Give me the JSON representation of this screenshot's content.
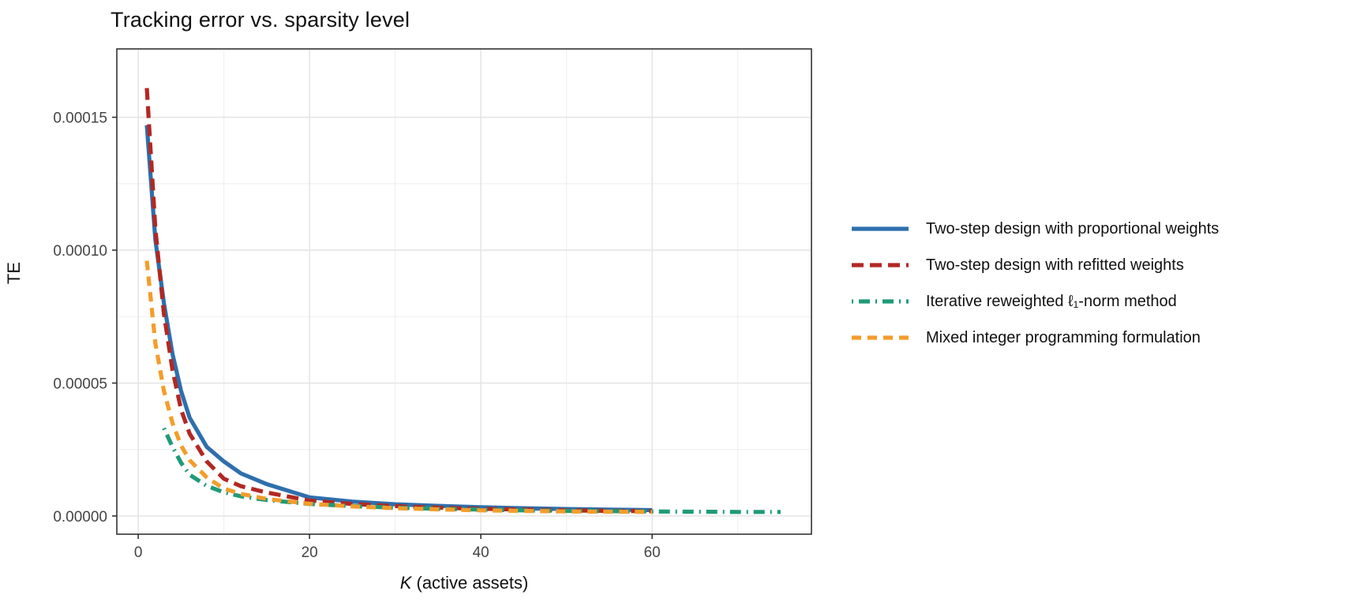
{
  "chart_data": {
    "type": "line",
    "title": "Tracking error vs. sparsity level",
    "xlabel_var": "K",
    "xlabel_rest": " (active assets)",
    "ylabel": "TE",
    "xlim": [
      -2.5,
      78.6
    ],
    "ylim": [
      -6.86e-06,
      0.00017571
    ],
    "x_ticks": [
      0,
      20,
      40,
      60
    ],
    "x_tick_labels": [
      "0",
      "20",
      "40",
      "60"
    ],
    "x_minor_ticks": [
      10,
      30,
      50,
      70
    ],
    "y_ticks": [
      0.0,
      5e-05,
      0.0001,
      0.00015
    ],
    "y_tick_labels": [
      "0.00000",
      "0.00005",
      "0.00010",
      "0.00015"
    ],
    "y_minor_ticks": [
      2.5e-05,
      7.5e-05,
      0.000125
    ],
    "grid": true,
    "legend_position": "right",
    "colors": {
      "panel_border": "#333333",
      "grid_major": "#e4e4e4",
      "grid_minor": "#efefef",
      "tick_text": "#444444"
    },
    "series": [
      {
        "name": "Two-step design with proportional weights",
        "color": "#2e6fad",
        "dash": "",
        "x": [
          1,
          2,
          3,
          4,
          5,
          6,
          8,
          10,
          12,
          15,
          20,
          25,
          30,
          35,
          40,
          45,
          50,
          55,
          60
        ],
        "y": [
          0.000147,
          0.000104,
          8e-05,
          6.1e-05,
          4.7e-05,
          3.7e-05,
          2.6e-05,
          2.05e-05,
          1.6e-05,
          1.2e-05,
          7e-06,
          5.4e-06,
          4.4e-06,
          3.8e-06,
          3.3e-06,
          2.9e-06,
          2.6e-06,
          2.4e-06,
          2.2e-06
        ]
      },
      {
        "name": "Two-step design with refitted weights",
        "color": "#b22823",
        "dash": "15 8",
        "x": [
          1,
          2,
          3,
          4,
          5,
          6,
          8,
          10,
          12,
          15,
          20,
          25,
          30,
          35,
          40,
          45,
          50,
          55,
          60
        ],
        "y": [
          0.000161,
          0.000108,
          7.6e-05,
          5.5e-05,
          4e-05,
          3.1e-05,
          2.05e-05,
          1.4e-05,
          1.12e-05,
          8.8e-06,
          5.8e-06,
          4.5e-06,
          3.7e-06,
          3.1e-06,
          2.7e-06,
          2.4e-06,
          2.1e-06,
          1.9e-06,
          1.8e-06
        ]
      },
      {
        "name": "Iterative reweighted ℓ₁-norm method",
        "color": "#1f9a78",
        "dash": "2 7 14 7",
        "x": [
          3,
          4,
          5,
          6,
          8,
          10,
          12,
          15,
          20,
          25,
          30,
          35,
          40,
          45,
          50,
          55,
          60,
          65,
          70,
          75
        ],
        "y": [
          3.3e-05,
          2.6e-05,
          2e-05,
          1.55e-05,
          1.13e-05,
          8.9e-06,
          7.4e-06,
          6e-06,
          4.5e-06,
          3.7e-06,
          3.1e-06,
          2.7e-06,
          2.4e-06,
          2.1e-06,
          1.9e-06,
          1.8e-06,
          1.7e-06,
          1.6e-06,
          1.5e-06,
          1.5e-06
        ]
      },
      {
        "name": "Mixed integer programming formulation",
        "color": "#f39d2c",
        "dash": "12 8",
        "x": [
          1,
          2,
          3,
          4,
          5,
          6,
          8,
          10,
          12,
          15,
          20,
          25,
          30,
          35,
          40,
          45,
          50,
          55,
          60
        ],
        "y": [
          9.6e-05,
          6.5e-05,
          4.7e-05,
          3.5e-05,
          2.65e-05,
          2.1e-05,
          1.45e-05,
          1.03e-05,
          8.3e-06,
          6.4e-06,
          4.6e-06,
          3.6e-06,
          2.9e-06,
          2.5e-06,
          2.1e-06,
          1.9e-06,
          1.7e-06,
          1.6e-06,
          1.5e-06
        ]
      }
    ]
  }
}
